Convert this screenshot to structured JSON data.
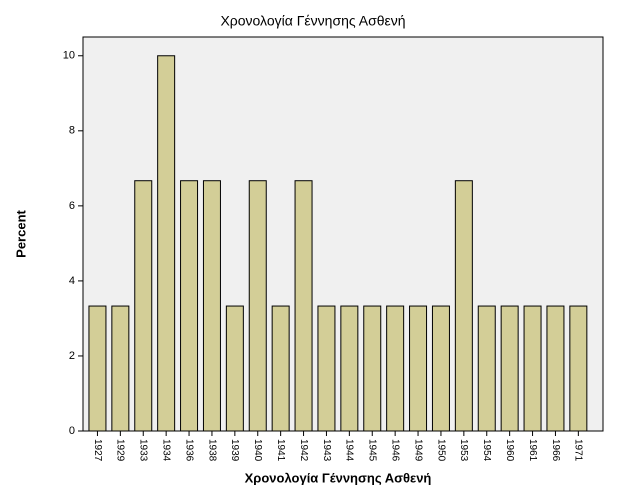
{
  "chart_data": {
    "type": "bar",
    "title": "Χρονολογία Γέννησης Ασθενή",
    "x_label": "Χρονολογία Γέννησης Ασθενή",
    "y_label": "Percent",
    "categories": [
      "1927",
      "1929",
      "1933",
      "1934",
      "1936",
      "1938",
      "1939",
      "1940",
      "1941",
      "1942",
      "1943",
      "1944",
      "1945",
      "1946",
      "1949",
      "1950",
      "1953",
      "1954",
      "1960",
      "1961",
      "1966",
      "1971"
    ],
    "values": [
      3.33,
      3.33,
      6.67,
      10,
      6.67,
      6.67,
      3.33,
      6.67,
      3.33,
      6.67,
      3.33,
      3.33,
      3.33,
      3.33,
      3.33,
      3.33,
      6.67,
      3.33,
      3.33,
      3.33,
      3.33,
      3.33
    ],
    "color": "#d3ce97",
    "ylim": [
      0,
      10.5
    ],
    "yticks": [
      0,
      2,
      4,
      6,
      8,
      10
    ]
  }
}
